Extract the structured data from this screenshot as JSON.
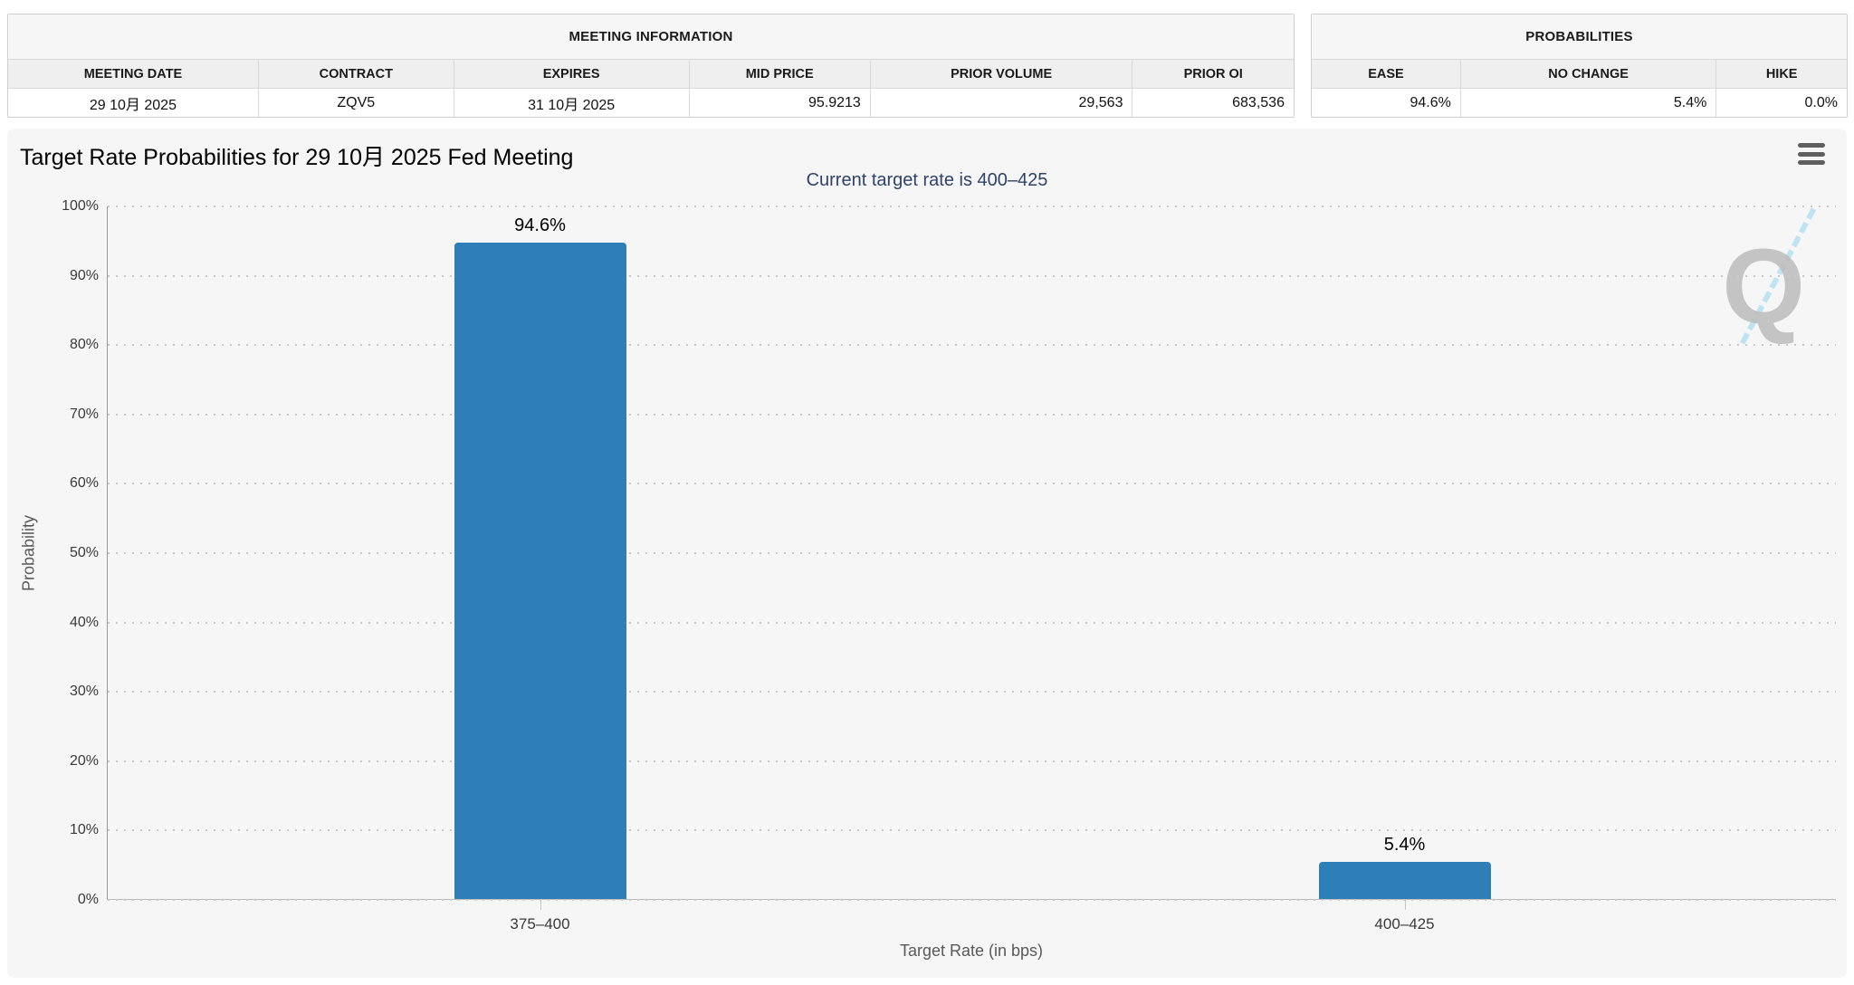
{
  "meeting_information": {
    "title": "MEETING INFORMATION",
    "columns": [
      "MEETING DATE",
      "CONTRACT",
      "EXPIRES",
      "MID PRICE",
      "PRIOR VOLUME",
      "PRIOR OI"
    ],
    "values": [
      "29 10月 2025",
      "ZQV5",
      "31 10月 2025",
      "95.9213",
      "29,563",
      "683,536"
    ]
  },
  "probabilities": {
    "title": "PROBABILITIES",
    "columns": [
      "EASE",
      "NO CHANGE",
      "HIKE"
    ],
    "values": [
      "94.6%",
      "5.4%",
      "0.0%"
    ]
  },
  "chart": {
    "title": "Target Rate Probabilities for 29 10月 2025 Fed Meeting",
    "subtitle": "Current target rate is 400–425",
    "menu_icon": "hamburger-menu-icon",
    "watermark_letter": "Q"
  },
  "chart_data": {
    "type": "bar",
    "categories": [
      "375–400",
      "400–425"
    ],
    "values": [
      94.6,
      5.4
    ],
    "data_labels": [
      "94.6%",
      "5.4%"
    ],
    "title": "Target Rate Probabilities for 29 10月 2025 Fed Meeting",
    "subtitle": "Current target rate is 400–425",
    "xlabel": "Target Rate (in bps)",
    "ylabel": "Probability",
    "ylim": [
      0,
      100
    ],
    "ytick_step": 10,
    "ytick_labels": [
      "0%",
      "10%",
      "20%",
      "30%",
      "40%",
      "50%",
      "60%",
      "70%",
      "80%",
      "90%",
      "100%"
    ],
    "grid": "horizontal-dotted",
    "legend": "none",
    "bar_color": "#2e7eb8",
    "subtitle_color": "#2f4269"
  }
}
